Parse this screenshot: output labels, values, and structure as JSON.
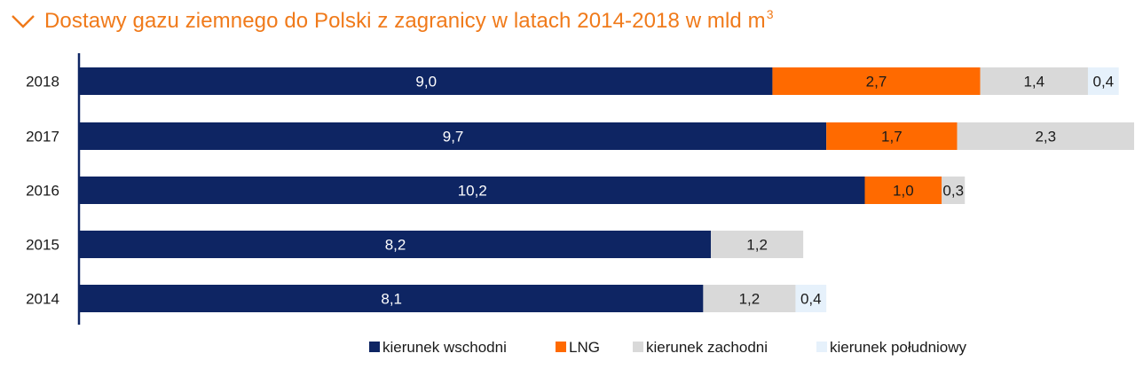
{
  "header": {
    "title": "Dostawy gazu ziemnego do Polski z zagranicy w latach 2014-2018 w mld m",
    "title_superscript": "3",
    "icon": "chevron-down-icon",
    "accent_color": "#f07a1a"
  },
  "chart_data": {
    "type": "bar",
    "orientation": "horizontal",
    "stacked": true,
    "title": "Dostawy gazu ziemnego do Polski z zagranicy w latach 2014-2018 w mld m3",
    "unit": "mld m3",
    "categories": [
      "2018",
      "2017",
      "2016",
      "2015",
      "2014"
    ],
    "series": [
      {
        "name": "kierunek wschodni",
        "color": "#0e2563",
        "label_color": "#ffffff",
        "values": [
          9.0,
          9.7,
          10.2,
          8.2,
          8.1
        ],
        "labels": [
          "9,0",
          "9,7",
          "10,2",
          "8,2",
          "8,1"
        ]
      },
      {
        "name": "LNG",
        "color": "#ff6a00",
        "label_color": "#1a1a1a",
        "values": [
          2.7,
          1.7,
          1.0,
          null,
          null
        ],
        "labels": [
          "2,7",
          "1,7",
          "1,0",
          "",
          ""
        ]
      },
      {
        "name": "kierunek zachodni",
        "color": "#d9d9d9",
        "label_color": "#1a1a1a",
        "values": [
          1.4,
          2.3,
          0.3,
          1.2,
          1.2
        ],
        "labels": [
          "1,4",
          "2,3",
          "0,3",
          "1,2",
          "1,2"
        ]
      },
      {
        "name": "kierunek południowy",
        "color": "#e6f1fb",
        "label_color": "#1a1a1a",
        "values": [
          0.4,
          null,
          null,
          null,
          0.4
        ],
        "labels": [
          "0,4",
          "",
          "",
          "",
          "0,4"
        ]
      }
    ],
    "xlim": [
      0,
      13.7
    ],
    "grid": false,
    "legend_position": "bottom"
  }
}
